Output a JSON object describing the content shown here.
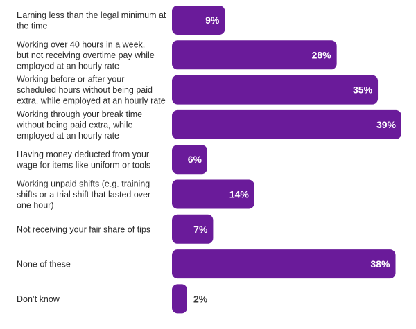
{
  "chart_data": {
    "type": "bar",
    "orientation": "horizontal",
    "categories": [
      [
        "Earning less than the legal minimum at",
        "the time"
      ],
      [
        "Working over 40 hours in a week,",
        "but not receiving overtime pay while",
        "employed at an hourly rate"
      ],
      [
        "Working before or after your",
        "scheduled hours without being paid",
        "extra, while employed at an hourly rate"
      ],
      [
        "Working through your break time",
        "without being paid extra, while",
        "employed at an hourly rate"
      ],
      [
        "Having money deducted from your",
        "wage for items like uniform or tools"
      ],
      [
        "Working unpaid shifts (e.g. training",
        "shifts or a trial shift that lasted over",
        "one hour)"
      ],
      [
        "Not receiving your fair share of tips"
      ],
      [
        "None of these"
      ],
      [
        "Don’t know"
      ]
    ],
    "values": [
      9,
      28,
      35,
      39,
      6,
      14,
      7,
      38,
      2
    ],
    "value_labels": [
      "9%",
      "28%",
      "35%",
      "39%",
      "6%",
      "14%",
      "7%",
      "38%",
      "2%"
    ],
    "xlim": [
      0,
      39
    ],
    "grid": false,
    "bar_color": "#6a1b9a",
    "label_inside_color": "#ffffff",
    "label_outside_color": "#3a3a3a"
  }
}
